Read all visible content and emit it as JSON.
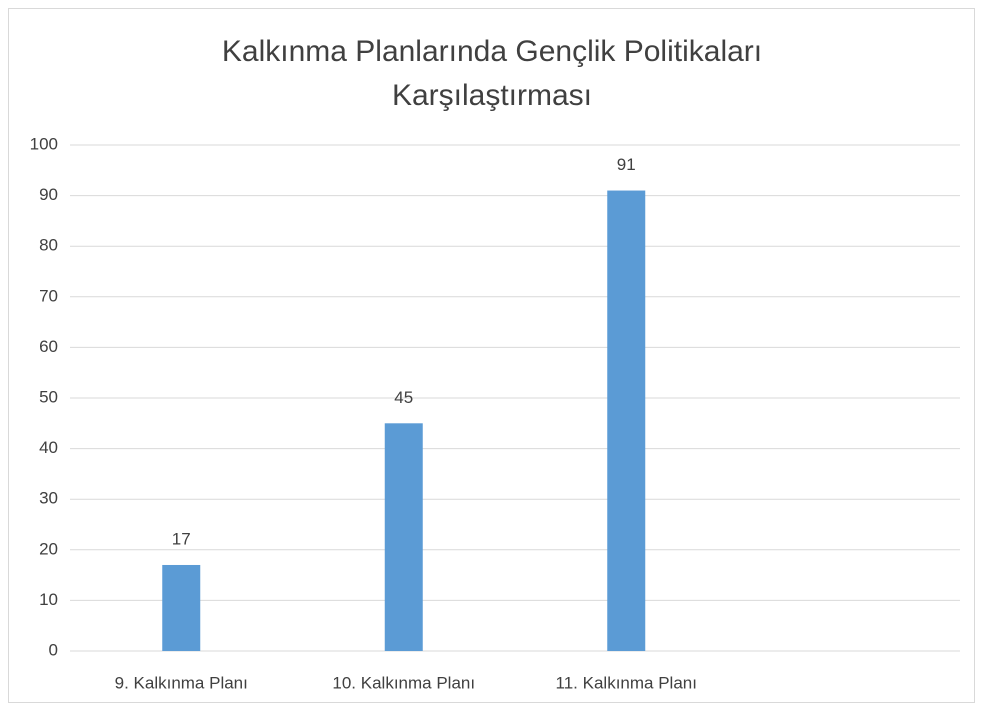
{
  "chart_data": {
    "type": "bar",
    "title": "Kalkınma Planlarında Gençlik Politikaları Karşılaştırması",
    "categories": [
      "9. Kalkınma Planı",
      "10. Kalkınma Planı",
      "11. Kalkınma Planı",
      null
    ],
    "values": [
      17,
      45,
      91,
      null
    ],
    "color": "#5b9bd5",
    "ylim": [
      0,
      100
    ],
    "yticks": [
      0,
      10,
      20,
      30,
      40,
      50,
      60,
      70,
      80,
      90,
      100
    ],
    "grid": true
  }
}
